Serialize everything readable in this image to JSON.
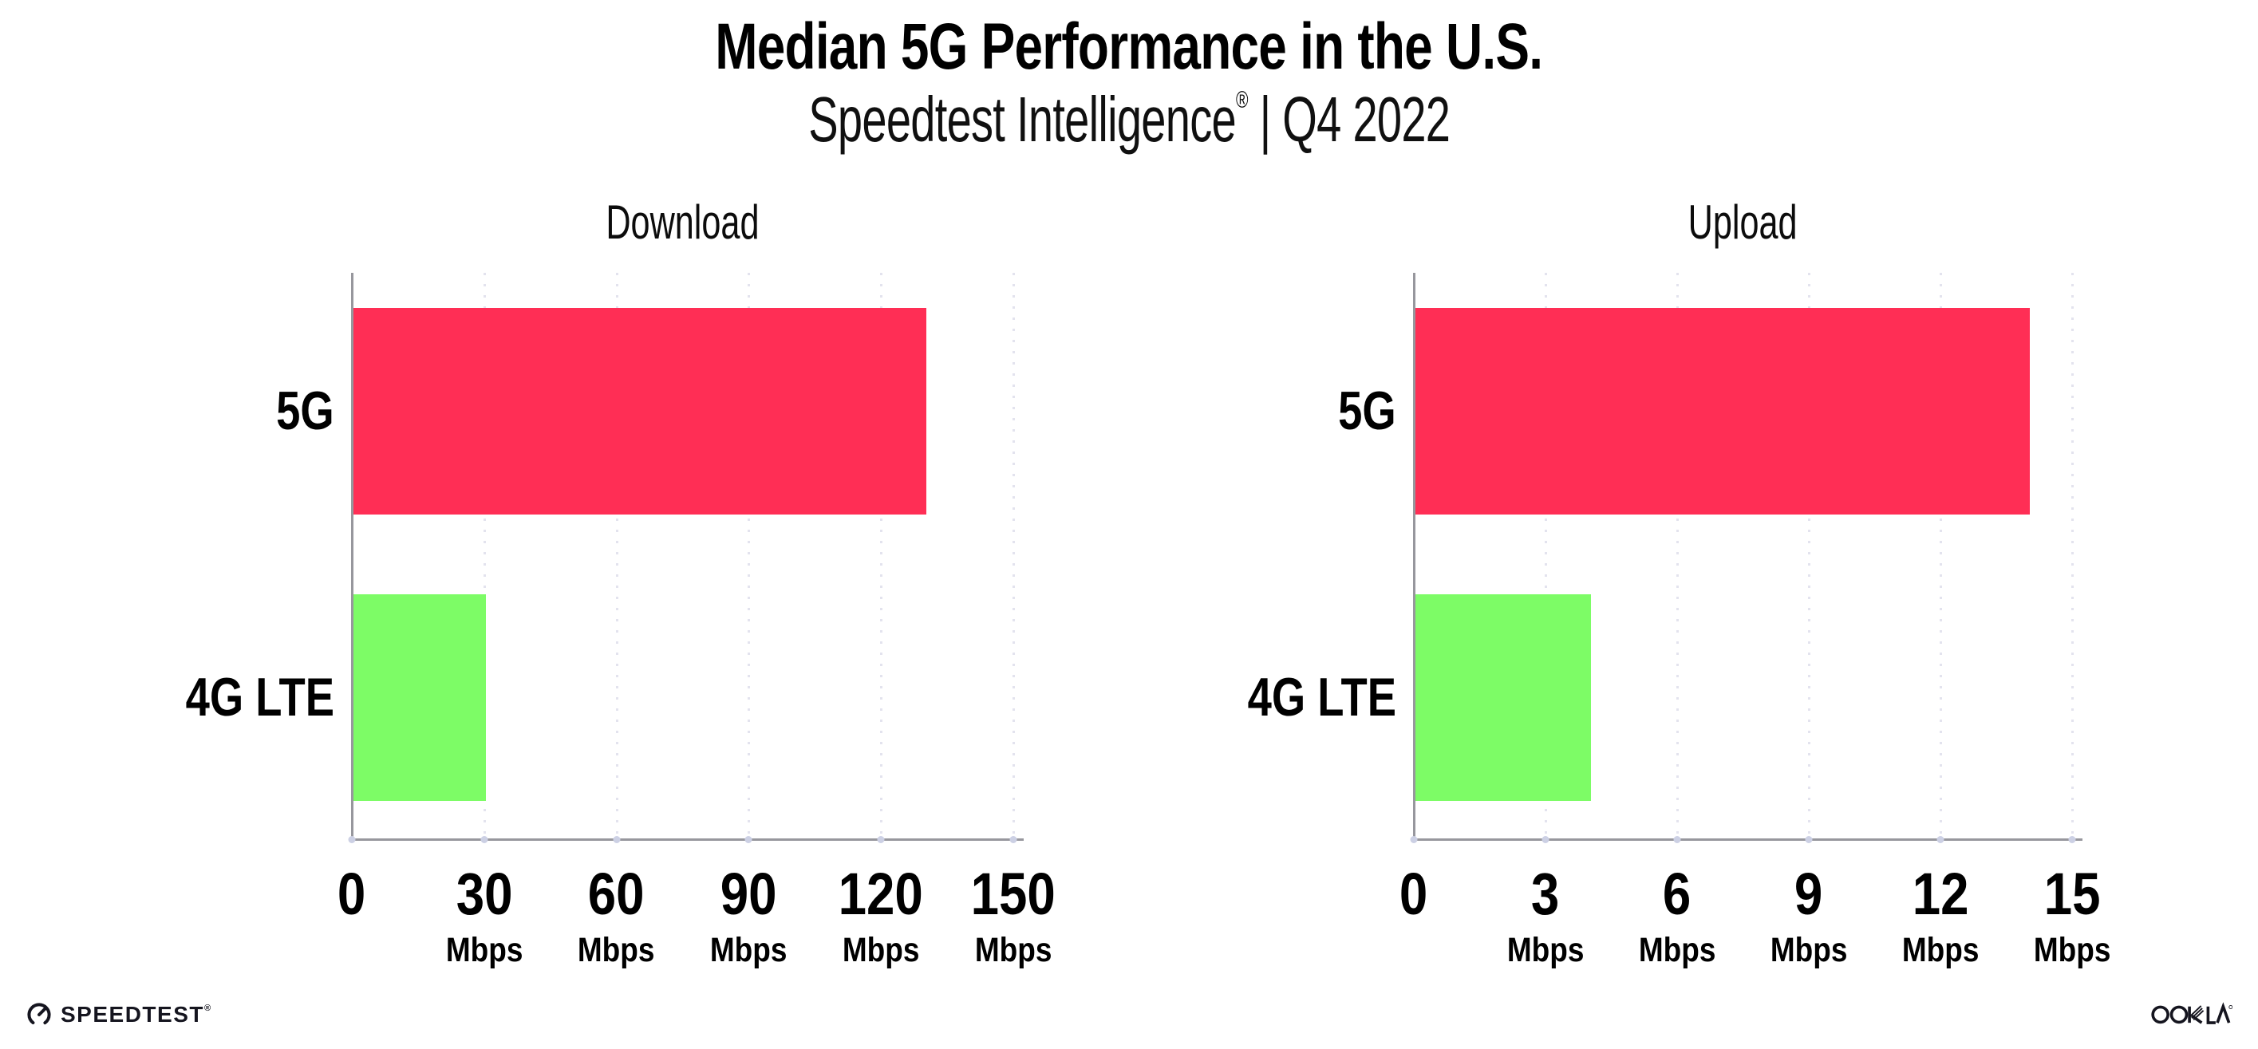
{
  "header": {
    "title": "Median 5G Performance in the U.S.",
    "subtitle_brand": "Speedtest Intelligence",
    "subtitle_reg": "®",
    "subtitle_rest": " | Q4 2022"
  },
  "chart_data": [
    {
      "type": "bar",
      "orientation": "horizontal",
      "title": "Download",
      "categories": [
        "5G",
        "4G LTE"
      ],
      "values": [
        130,
        30
      ],
      "unit": "Mbps",
      "xlim": [
        0,
        150
      ],
      "ticks": [
        0,
        30,
        60,
        90,
        120,
        150
      ],
      "tick_labels": [
        "0",
        "30",
        "60",
        "90",
        "120",
        "150"
      ],
      "bar_colors": [
        "#ff2e55",
        "#7dfc66"
      ],
      "grid": "vertical-dotted",
      "legend": "none"
    },
    {
      "type": "bar",
      "orientation": "horizontal",
      "title": "Upload",
      "categories": [
        "5G",
        "4G LTE"
      ],
      "values": [
        14,
        4
      ],
      "unit": "Mbps",
      "xlim": [
        0,
        15
      ],
      "ticks": [
        0,
        3,
        6,
        9,
        12,
        15
      ],
      "tick_labels": [
        "0",
        "3",
        "6",
        "9",
        "12",
        "15"
      ],
      "bar_colors": [
        "#ff2e55",
        "#7dfc66"
      ],
      "grid": "vertical-dotted",
      "legend": "none"
    }
  ],
  "footer": {
    "speedtest_wordmark": "SPEEDTEST",
    "speedtest_reg": "®",
    "ookla_wordmark": "OOKLA",
    "ookla_reg": "®"
  },
  "colors": {
    "bar_5g": "#ff2e55",
    "bar_4g_lte": "#7dfc66",
    "axis": "#97979d",
    "gridline": "#e3e3ee",
    "background": "#ffffff",
    "text": "#000000"
  },
  "icons": {
    "speedtest_gauge": "speedometer-gauge-icon"
  }
}
